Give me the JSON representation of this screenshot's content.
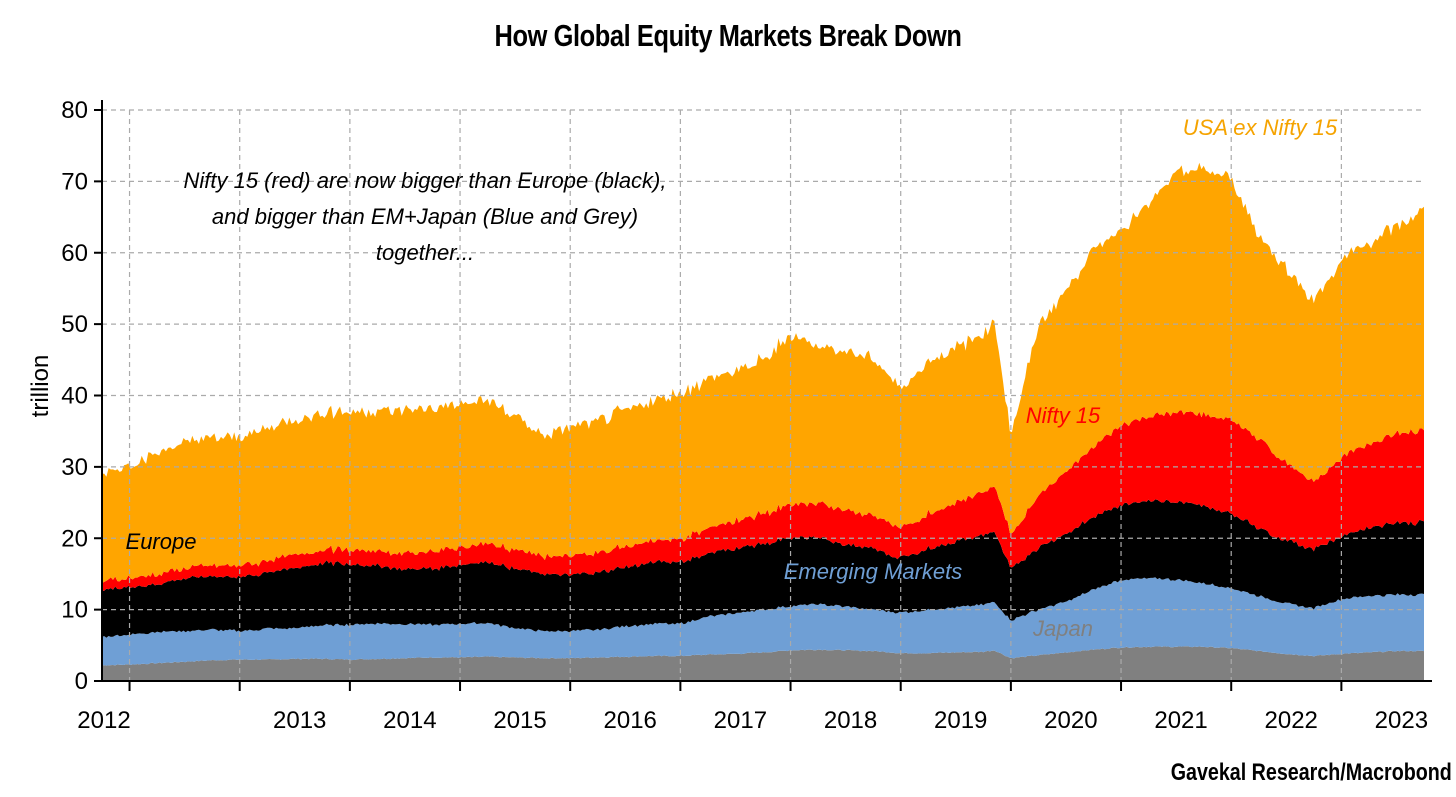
{
  "chart_data": {
    "type": "area",
    "stacked": true,
    "title": "How Global Equity Markets Break Down",
    "source": "Gavekal Research/Macrobond",
    "ylabel": "trillion",
    "ylim": [
      0,
      80
    ],
    "yticks": [
      0,
      10,
      20,
      30,
      40,
      50,
      60,
      70,
      80
    ],
    "xlim": [
      2011.75,
      2023.75
    ],
    "xtick_labels": [
      {
        "label": "2012",
        "x": 2012.0
      },
      {
        "label": "2013",
        "x": 2013.0
      },
      {
        "label": "2014",
        "x": 2014.0
      },
      {
        "label": "2015",
        "x": 2015.0
      },
      {
        "label": "2016",
        "x": 2016.0
      },
      {
        "label": "2017",
        "x": 2017.0
      },
      {
        "label": "2018",
        "x": 2018.0
      },
      {
        "label": "2019",
        "x": 2019.0
      },
      {
        "label": "2020",
        "x": 2020.0
      },
      {
        "label": "2021",
        "x": 2021.0
      },
      {
        "label": "2022",
        "x": 2022.0
      },
      {
        "label": "2023",
        "x": 2023.0
      }
    ],
    "grid": true,
    "x": [
      2011.75,
      2012.0,
      2012.25,
      2012.5,
      2012.75,
      2013.0,
      2013.25,
      2013.5,
      2013.75,
      2014.0,
      2014.25,
      2014.5,
      2014.75,
      2015.0,
      2015.25,
      2015.5,
      2015.75,
      2016.0,
      2016.25,
      2016.5,
      2016.75,
      2017.0,
      2017.25,
      2017.5,
      2017.75,
      2018.0,
      2018.25,
      2018.5,
      2018.75,
      2019.0,
      2019.25,
      2019.5,
      2019.75,
      2019.85,
      2020.0,
      2020.25,
      2020.5,
      2020.75,
      2021.0,
      2021.25,
      2021.5,
      2021.75,
      2022.0,
      2022.25,
      2022.5,
      2022.75,
      2023.0,
      2023.25,
      2023.5,
      2023.75
    ],
    "series": [
      {
        "name": "Japan",
        "color": "#808080",
        "values": [
          2.2,
          2.3,
          2.5,
          2.7,
          2.9,
          3.0,
          3.0,
          3.1,
          3.1,
          3.0,
          3.1,
          3.2,
          3.3,
          3.3,
          3.4,
          3.3,
          3.2,
          3.2,
          3.3,
          3.4,
          3.5,
          3.5,
          3.7,
          3.8,
          4.0,
          4.3,
          4.4,
          4.3,
          4.2,
          3.9,
          3.9,
          4.0,
          4.1,
          4.3,
          3.2,
          3.6,
          4.0,
          4.4,
          4.7,
          4.8,
          4.8,
          4.8,
          4.6,
          4.2,
          3.8,
          3.5,
          3.8,
          4.0,
          4.2,
          4.2
        ]
      },
      {
        "name": "Emerging Markets",
        "color": "#6f9fd5",
        "values": [
          4.0,
          4.2,
          4.4,
          4.3,
          4.3,
          4.0,
          4.3,
          4.3,
          4.7,
          4.9,
          5.0,
          4.8,
          4.6,
          4.7,
          4.7,
          4.1,
          3.8,
          3.8,
          3.9,
          4.3,
          4.5,
          4.5,
          5.3,
          5.7,
          6.0,
          6.2,
          6.4,
          6.1,
          5.8,
          5.7,
          6.1,
          6.3,
          6.6,
          6.8,
          5.3,
          6.4,
          7.1,
          8.4,
          9.5,
          9.6,
          9.4,
          8.9,
          8.4,
          7.7,
          7.1,
          6.7,
          7.7,
          7.9,
          7.9,
          7.9
        ]
      },
      {
        "name": "Europe",
        "color": "#000000",
        "values": [
          6.6,
          6.7,
          6.7,
          7.4,
          7.5,
          7.5,
          7.9,
          8.4,
          8.7,
          8.5,
          8.1,
          7.7,
          7.8,
          8.3,
          8.6,
          8.3,
          8.0,
          7.8,
          8.0,
          8.3,
          8.6,
          8.7,
          8.8,
          9.1,
          9.2,
          9.5,
          9.3,
          8.7,
          8.5,
          7.6,
          8.6,
          9.2,
          9.7,
          9.9,
          7.2,
          8.7,
          9.5,
          10.1,
          10.6,
          10.9,
          10.9,
          10.8,
          10.5,
          9.6,
          8.8,
          8.3,
          8.8,
          9.6,
          10.1,
          10.1
        ]
      },
      {
        "name": "Nifty 15",
        "color": "#ff0000",
        "values": [
          1.2,
          1.3,
          1.4,
          1.4,
          1.5,
          1.6,
          1.7,
          1.8,
          1.9,
          2.0,
          2.1,
          2.2,
          2.4,
          2.5,
          2.6,
          2.6,
          2.5,
          2.6,
          2.7,
          2.9,
          3.0,
          3.2,
          3.5,
          3.9,
          4.2,
          4.6,
          4.8,
          4.8,
          4.7,
          4.2,
          4.8,
          5.4,
          6.0,
          6.4,
          4.8,
          7.3,
          8.7,
          9.8,
          11.2,
          11.8,
          12.5,
          12.8,
          13.2,
          12.5,
          10.9,
          9.5,
          11.0,
          11.8,
          12.5,
          12.8
        ]
      },
      {
        "name": "USA ex Nifty 15",
        "color": "#ffa500",
        "values": [
          15.0,
          16.0,
          17.0,
          17.6,
          17.8,
          18.0,
          18.6,
          18.9,
          19.3,
          19.3,
          19.7,
          20.1,
          20.1,
          20.0,
          20.1,
          18.7,
          16.9,
          18.0,
          18.4,
          19.1,
          19.6,
          20.5,
          20.9,
          21.0,
          21.4,
          23.8,
          22.1,
          22.3,
          22.0,
          19.5,
          21.6,
          21.6,
          22.2,
          23.1,
          14.0,
          23.8,
          25.4,
          27.6,
          27.6,
          29.6,
          33.4,
          34.4,
          33.8,
          28.5,
          27.3,
          25.4,
          27.5,
          28.2,
          29.0,
          30.8
        ]
      }
    ],
    "annotations": [
      {
        "text": "Nifty 15 (red) are now bigger than Europe (black),",
        "color": "#000000"
      },
      {
        "text": "and bigger than EM+Japan (Blue and Grey)",
        "color": "#000000"
      },
      {
        "text": "together...",
        "color": "#000000"
      }
    ],
    "series_labels": [
      {
        "text": "USA ex Nifty 15",
        "color": "#f5a300"
      },
      {
        "text": "Nifty 15",
        "color": "#ff0000"
      },
      {
        "text": "Europe",
        "color": "#000000"
      },
      {
        "text": "Emerging Markets",
        "color": "#6f9fd5"
      },
      {
        "text": "Japan",
        "color": "#808080"
      }
    ]
  }
}
